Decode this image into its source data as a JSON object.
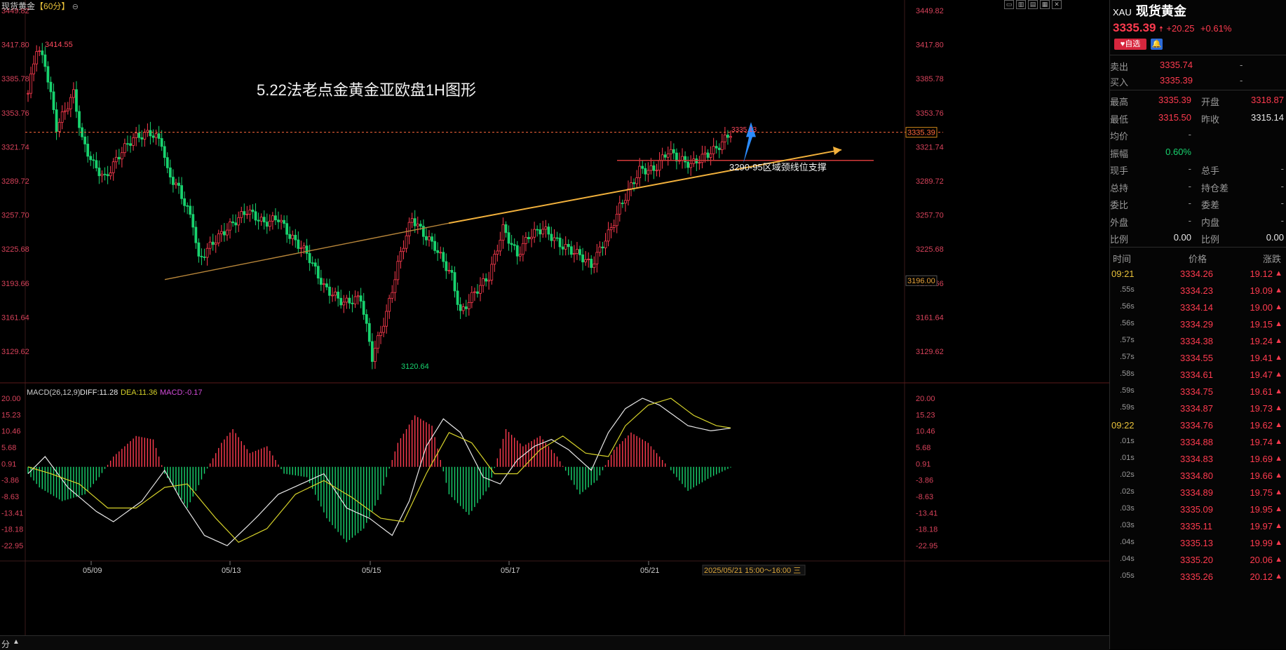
{
  "header": {
    "instrument": "现货黄金",
    "period": "【60分】"
  },
  "main_chart": {
    "annotation_title": "5.22法老点金黄金亚欧盘1H图形",
    "support_label": "3290-95区域颈线位支撑",
    "y_axis_left": [
      "3449.82",
      "3417.80",
      "3385.78",
      "3353.76",
      "3321.74",
      "3289.72",
      "3257.70",
      "3225.68",
      "3193.66",
      "3161.64",
      "3129.62"
    ],
    "y_axis_right": [
      "3449.82",
      "3417.80",
      "3385.78",
      "3353.76",
      "3321.74",
      "3289.72",
      "3257.70",
      "3225.68",
      "3193.66",
      "3161.64",
      "3129.62"
    ],
    "y_range": [
      3113.0,
      3452.0
    ],
    "high_label": "3414.55",
    "low_label": "3120.64",
    "last_label": "3335.13",
    "current_price_tag": "3335.39",
    "marked_price_tag": "3196.00",
    "x_labels": [
      "05/09",
      "05/13",
      "05/15",
      "05/17",
      "05/21"
    ],
    "cursor_label": "2025/05/21 15:00～16:00 三"
  },
  "macd": {
    "title": "MACD(26,12,9)",
    "diff_label": "DIFF:11.28",
    "dea_label": "DEA:11.36",
    "macd_label": "MACD:-0.17",
    "y_axis_left": [
      "20.00",
      "15.23",
      "10.46",
      "5.68",
      "0.91",
      "-3.86",
      "-8.63",
      "-13.41",
      "-18.18",
      "-22.95"
    ],
    "y_axis_right": [
      "20.00",
      "15.23",
      "10.46",
      "5.68",
      "0.91",
      "-3.86",
      "-8.63",
      "-13.41",
      "-18.18",
      "-22.95"
    ],
    "y_range": [
      -27.0,
      21.5
    ]
  },
  "colors": {
    "up": "#ff3b4f",
    "down": "#18d26e",
    "trendline": "#f2b13c",
    "diff_line": "#e8e8e8",
    "dea_line": "#d6d22a",
    "macd_label": "#d24bd8"
  },
  "panel": {
    "code": "XAU",
    "name": "现货黄金",
    "price": "3335.39",
    "change": "+20.25",
    "change_pct": "+0.61%",
    "fav_button": "自选",
    "quote_rows": [
      {
        "label": "卖出",
        "value": "3335.74",
        "extra": "-"
      },
      {
        "label": "买入",
        "value": "3335.39",
        "extra": "-"
      }
    ],
    "stats": [
      {
        "l1": "最高",
        "v1": "3335.39",
        "l2": "开盘",
        "v2": "3318.87"
      },
      {
        "l1": "最低",
        "v1": "3315.50",
        "l2": "昨收",
        "v2": "3315.14"
      },
      {
        "l1": "均价",
        "v1": "-",
        "l2": "",
        "v2": ""
      },
      {
        "l1": "振幅",
        "v1": "0.60%",
        "l2": "",
        "v2": ""
      },
      {
        "l1": "现手",
        "v1": "-",
        "l2": "总手",
        "v2": "-"
      },
      {
        "l1": "总持",
        "v1": "-",
        "l2": "持仓差",
        "v2": "-"
      },
      {
        "l1": "委比",
        "v1": "-",
        "l2": "委差",
        "v2": "-"
      },
      {
        "l1": "外盘",
        "v1": "-",
        "l2": "内盘",
        "v2": "-"
      },
      {
        "l1": "比例",
        "v1": "0.00",
        "l2": "比例",
        "v2": "0.00"
      }
    ],
    "ticks_header": {
      "time": "时间",
      "price": "价格",
      "change": "涨跌"
    },
    "ticks": [
      {
        "time": "09:21",
        "price": "3334.26",
        "change": "19.12"
      },
      {
        "time": ".55s",
        "price": "3334.23",
        "change": "19.09"
      },
      {
        "time": ".56s",
        "price": "3334.14",
        "change": "19.00"
      },
      {
        "time": ".56s",
        "price": "3334.29",
        "change": "19.15"
      },
      {
        "time": ".57s",
        "price": "3334.38",
        "change": "19.24"
      },
      {
        "time": ".57s",
        "price": "3334.55",
        "change": "19.41"
      },
      {
        "time": ".58s",
        "price": "3334.61",
        "change": "19.47"
      },
      {
        "time": ".59s",
        "price": "3334.75",
        "change": "19.61"
      },
      {
        "time": ".59s",
        "price": "3334.87",
        "change": "19.73"
      },
      {
        "time": "09:22",
        "price": "3334.76",
        "change": "19.62"
      },
      {
        "time": ".01s",
        "price": "3334.88",
        "change": "19.74"
      },
      {
        "time": ".01s",
        "price": "3334.83",
        "change": "19.69"
      },
      {
        "time": ".02s",
        "price": "3334.80",
        "change": "19.66"
      },
      {
        "time": ".02s",
        "price": "3334.89",
        "change": "19.75"
      },
      {
        "time": ".03s",
        "price": "3335.09",
        "change": "19.95"
      },
      {
        "time": ".03s",
        "price": "3335.11",
        "change": "19.97"
      },
      {
        "time": ".04s",
        "price": "3335.13",
        "change": "19.99"
      },
      {
        "time": ".04s",
        "price": "3335.20",
        "change": "20.06"
      },
      {
        "time": ".05s",
        "price": "3335.26",
        "change": "20.12"
      }
    ]
  },
  "bottom": {
    "left_label": "分",
    "up_arrow": "▲"
  }
}
